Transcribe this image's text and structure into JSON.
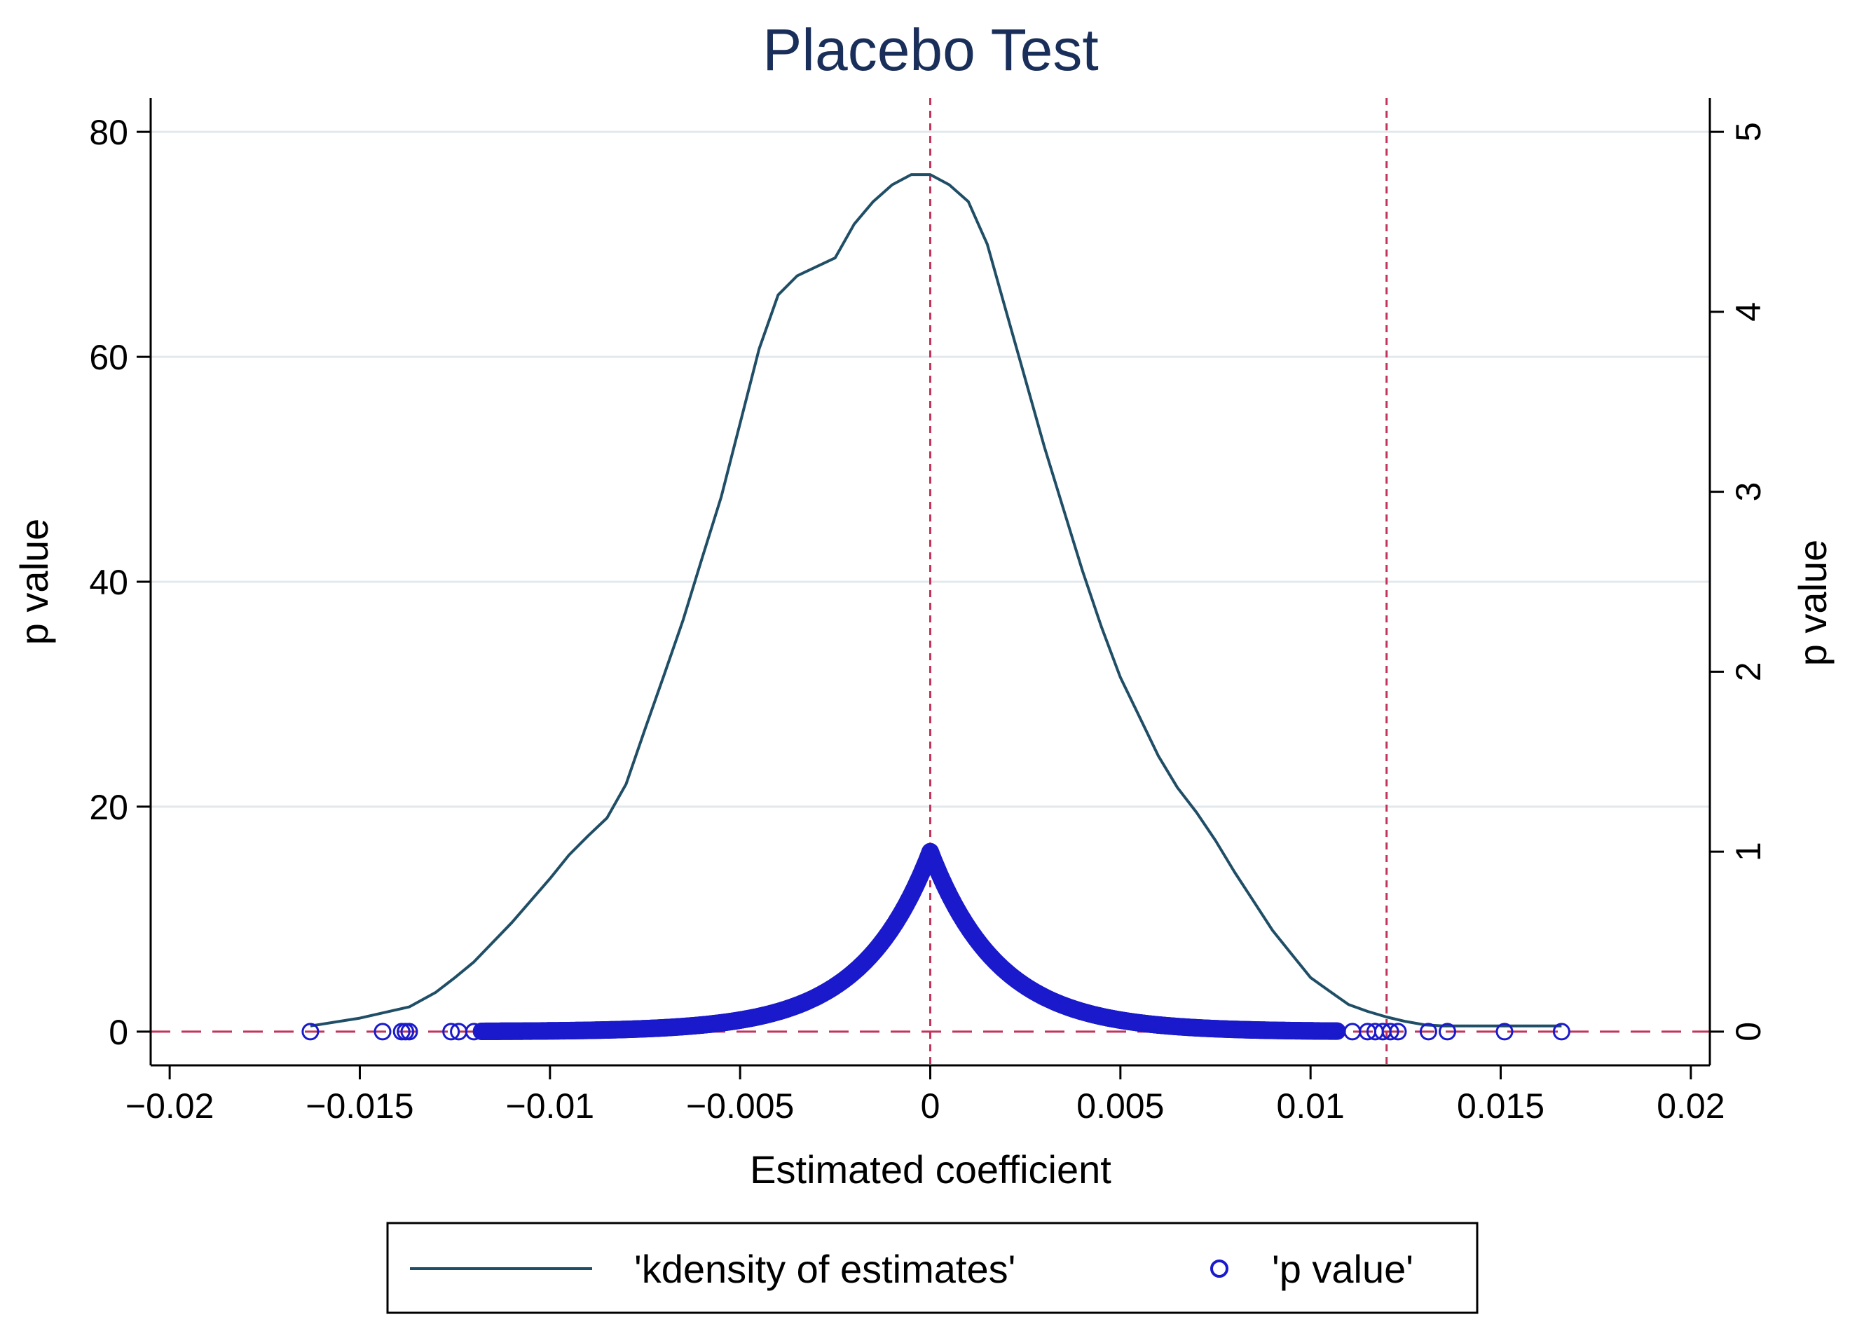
{
  "colors": {
    "density_line": "#1f4e66",
    "p_marker": "#1a1acc",
    "reference_line": "#c2345a",
    "gridline": "#e3e8ec",
    "title": "#1a2e5a"
  },
  "chart_data": {
    "type": "line",
    "title": "Placebo Test",
    "xlabel": "Estimated coefficient",
    "ylabel_left": "p value",
    "ylabel_right": "p value",
    "xlim": [
      -0.0205,
      0.0205
    ],
    "ylim_left": [
      -3,
      83
    ],
    "ylim_right": [
      -0.1875,
      5.1875
    ],
    "x_ticks": [
      -0.02,
      -0.015,
      -0.01,
      -0.005,
      0,
      0.005,
      0.01,
      0.015,
      0.02
    ],
    "x_tick_labels": [
      "−0.02",
      "−0.015",
      "−0.01",
      "−0.005",
      "0",
      "0.005",
      "0.01",
      "0.015",
      "0.02"
    ],
    "y_ticks_left": [
      0,
      20,
      40,
      60,
      80
    ],
    "y_tick_labels_left": [
      "0",
      "20",
      "40",
      "60",
      "80"
    ],
    "y_ticks_right": [
      0,
      1,
      2,
      3,
      4,
      5
    ],
    "y_tick_labels_right": [
      "0",
      "1",
      "2",
      "3",
      "4",
      "5"
    ],
    "grid": true,
    "reference_lines": {
      "vertical_x": [
        0,
        0.012
      ],
      "horizontal_y_left": [
        0
      ]
    },
    "legend": {
      "position": "bottom",
      "entries": [
        "'kdensity of estimates'",
        "'p value'"
      ]
    },
    "series": [
      {
        "name": "'kdensity of estimates'",
        "kind": "line",
        "axis": "left",
        "x": [
          -0.0163,
          -0.015,
          -0.0137,
          -0.013,
          -0.0125,
          -0.012,
          -0.011,
          -0.01,
          -0.0095,
          -0.009,
          -0.0085,
          -0.008,
          -0.0075,
          -0.007,
          -0.0065,
          -0.006,
          -0.0055,
          -0.005,
          -0.0045,
          -0.004,
          -0.0035,
          -0.003,
          -0.0025,
          -0.002,
          -0.0015,
          -0.001,
          -0.0005,
          0.0,
          0.0005,
          0.001,
          0.0015,
          0.002,
          0.0025,
          0.003,
          0.0035,
          0.004,
          0.0045,
          0.005,
          0.0055,
          0.006,
          0.0065,
          0.007,
          0.0075,
          0.008,
          0.0085,
          0.009,
          0.0095,
          0.01,
          0.0105,
          0.011,
          0.0115,
          0.012,
          0.0125,
          0.013,
          0.0135,
          0.014,
          0.0145,
          0.015,
          0.0155,
          0.016,
          0.0166
        ],
        "y": [
          0.5,
          1.2,
          2.2,
          3.5,
          4.8,
          6.2,
          9.7,
          13.6,
          15.7,
          17.4,
          19.0,
          22.0,
          26.9,
          31.7,
          36.6,
          42.1,
          47.5,
          54.1,
          60.7,
          65.5,
          67.2,
          68.0,
          68.8,
          71.8,
          73.8,
          75.3,
          76.2,
          76.2,
          75.3,
          73.8,
          70.0,
          64.0,
          58.0,
          52.0,
          46.5,
          41.0,
          36.0,
          31.5,
          28.0,
          24.5,
          21.7,
          19.5,
          17.0,
          14.2,
          11.6,
          9.0,
          6.9,
          4.8,
          3.6,
          2.4,
          1.8,
          1.3,
          0.9,
          0.6,
          0.5,
          0.5,
          0.5,
          0.5,
          0.5,
          0.5,
          0.5
        ]
      },
      {
        "name": "'p value'",
        "kind": "scatter",
        "axis": "right",
        "x_min": -0.0118,
        "x_max": 0.0107,
        "step": 2e-05,
        "peak_x": 0.0,
        "peak_p": 1.0,
        "decay_rate": 550,
        "outlier_x": [
          -0.0163,
          -0.0144,
          -0.0139,
          -0.0138,
          -0.0137,
          -0.0126,
          -0.0124,
          -0.012,
          0.0111,
          0.0115,
          0.0117,
          0.0119,
          0.0121,
          0.0123,
          0.0131,
          0.0136,
          0.0151,
          0.0166
        ],
        "outlier_p": [
          0,
          0,
          0,
          0,
          0,
          0,
          0,
          0,
          0,
          0,
          0,
          0,
          0,
          0,
          0,
          0,
          0,
          0
        ]
      }
    ]
  }
}
